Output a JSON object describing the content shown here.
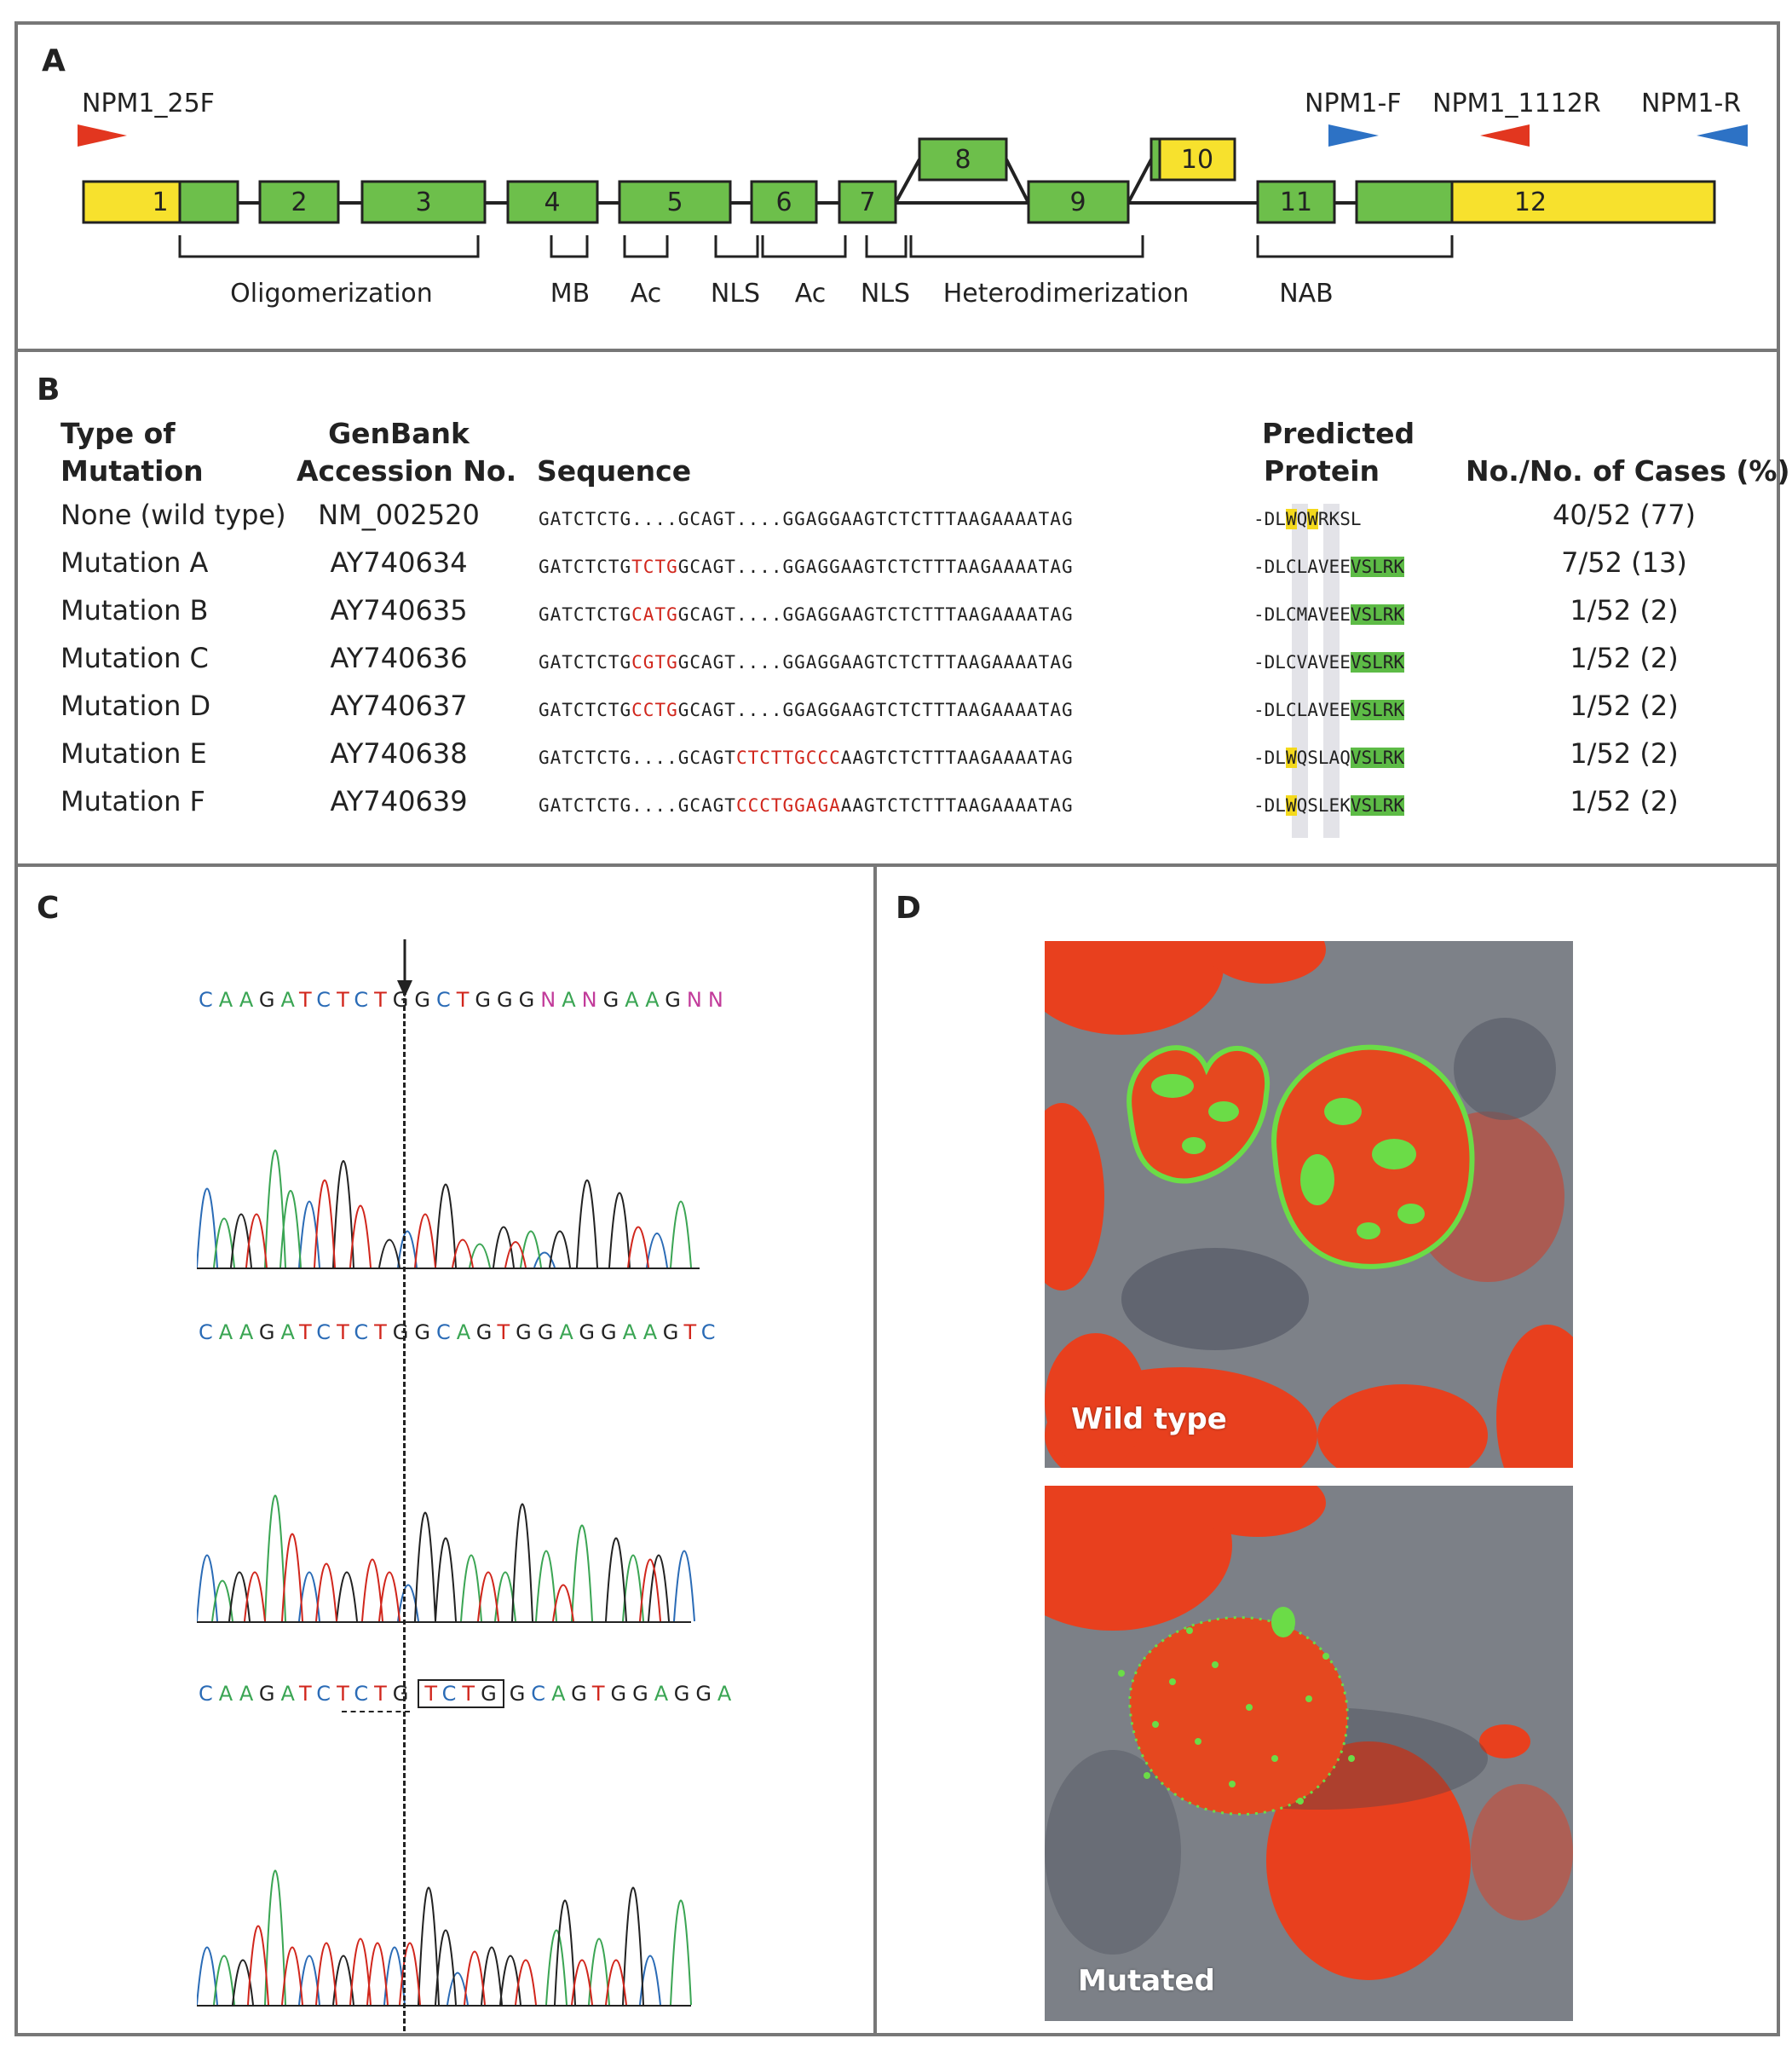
{
  "panel_a": {
    "label": "A",
    "primers": [
      "NPM1_25F",
      "NPM1-F",
      "NPM1_1112R",
      "NPM1-R"
    ],
    "exons": [
      "1",
      "2",
      "3",
      "4",
      "5",
      "6",
      "7",
      "8",
      "9",
      "10",
      "11",
      "12"
    ],
    "domains": [
      "Oligomerization",
      "MB",
      "Ac",
      "NLS",
      "Ac",
      "NLS",
      "Heterodimerization",
      "NAB"
    ],
    "colors": {
      "exon": "#6dbf4b",
      "utr": "#f7e12d",
      "primer_red": "#e2361f",
      "primer_blue": "#2d72c5"
    }
  },
  "panel_b": {
    "label": "B",
    "headers": {
      "type1": "Type of",
      "type2": "Mutation",
      "gb1": "GenBank",
      "gb2": "Accession No.",
      "seq": "Sequence",
      "prot1": "Predicted",
      "prot2": "Protein",
      "cases": "No./No. of Cases (%)"
    },
    "rows": [
      {
        "type": "None (wild type)",
        "acc": "NM_002520",
        "seq_pre": "GATCTCTG....GCAGT....GGAGGAAGTCTCTTTAAGAAAATAG",
        "seq_ins": "",
        "seq_post": "",
        "p1": "-DL",
        "p2": "W",
        "p3": "Q",
        "p4": "W",
        "p5": "RKSL",
        "p6": "",
        "cases": "40/52 (77)"
      },
      {
        "type": "Mutation A",
        "acc": "AY740634",
        "seq_pre": "GATCTCTG",
        "seq_ins": "TCTG",
        "seq_post": "GCAGT....GGAGGAAGTCTCTTTAAGAAAATAG",
        "p1": "-DL",
        "p2": "C",
        "p3": "LA",
        "p4": "V",
        "p5": "EE",
        "p6": "VSLRK",
        "cases": "7/52 (13)"
      },
      {
        "type": "Mutation B",
        "acc": "AY740635",
        "seq_pre": "GATCTCTG",
        "seq_ins": "CATG",
        "seq_post": "GCAGT....GGAGGAAGTCTCTTTAAGAAAATAG",
        "p1": "-DL",
        "p2": "C",
        "p3": "MA",
        "p4": "V",
        "p5": "EE",
        "p6": "VSLRK",
        "cases": "1/52 (2)"
      },
      {
        "type": "Mutation C",
        "acc": "AY740636",
        "seq_pre": "GATCTCTG",
        "seq_ins": "CGTG",
        "seq_post": "GCAGT....GGAGGAAGTCTCTTTAAGAAAATAG",
        "p1": "-DL",
        "p2": "C",
        "p3": "VA",
        "p4": "V",
        "p5": "EE",
        "p6": "VSLRK",
        "cases": "1/52 (2)"
      },
      {
        "type": "Mutation D",
        "acc": "AY740637",
        "seq_pre": "GATCTCTG",
        "seq_ins": "CCTG",
        "seq_post": "GCAGT....GGAGGAAGTCTCTTTAAGAAAATAG",
        "p1": "-DL",
        "p2": "C",
        "p3": "LA",
        "p4": "V",
        "p5": "EE",
        "p6": "VSLRK",
        "cases": "1/52 (2)"
      },
      {
        "type": "Mutation E",
        "acc": "AY740638",
        "seq_pre": "GATCTCTG....GCAGT",
        "seq_ins": "CTCTTGCCC",
        "seq_post": "AAGTCTCTTTAAGAAAATAG",
        "p1": "-DL",
        "p2": "W",
        "p3": "QS",
        "p4": "L",
        "p5": "AQ",
        "p6": "VSLRK",
        "cases": "1/52 (2)"
      },
      {
        "type": "Mutation F",
        "acc": "AY740639",
        "seq_pre": "GATCTCTG....GCAGT",
        "seq_ins": "CCCTGGAGA",
        "seq_post": "AAGTCTCTTTAAGAAAATAG",
        "p1": "-DL",
        "p2": "W",
        "p3": "QS",
        "p4": "L",
        "p5": "EK",
        "p6": "VSLRK",
        "cases": "1/52 (2)"
      }
    ]
  },
  "panel_c": {
    "label": "C",
    "traces": [
      {
        "bases": "CAAGATCTCTGGCTGGGNANGAAGNN"
      },
      {
        "bases": "CAAGATCTCTGGCAGTGGAGGAAGTC"
      },
      {
        "bases_pre": "CAAGATCTCTG",
        "bases_box": "TCTG",
        "bases_post": "GCAGTGGAGGA"
      }
    ]
  },
  "panel_d": {
    "label": "D",
    "images": [
      {
        "caption": "Wild type"
      },
      {
        "caption": "Mutated"
      }
    ]
  }
}
